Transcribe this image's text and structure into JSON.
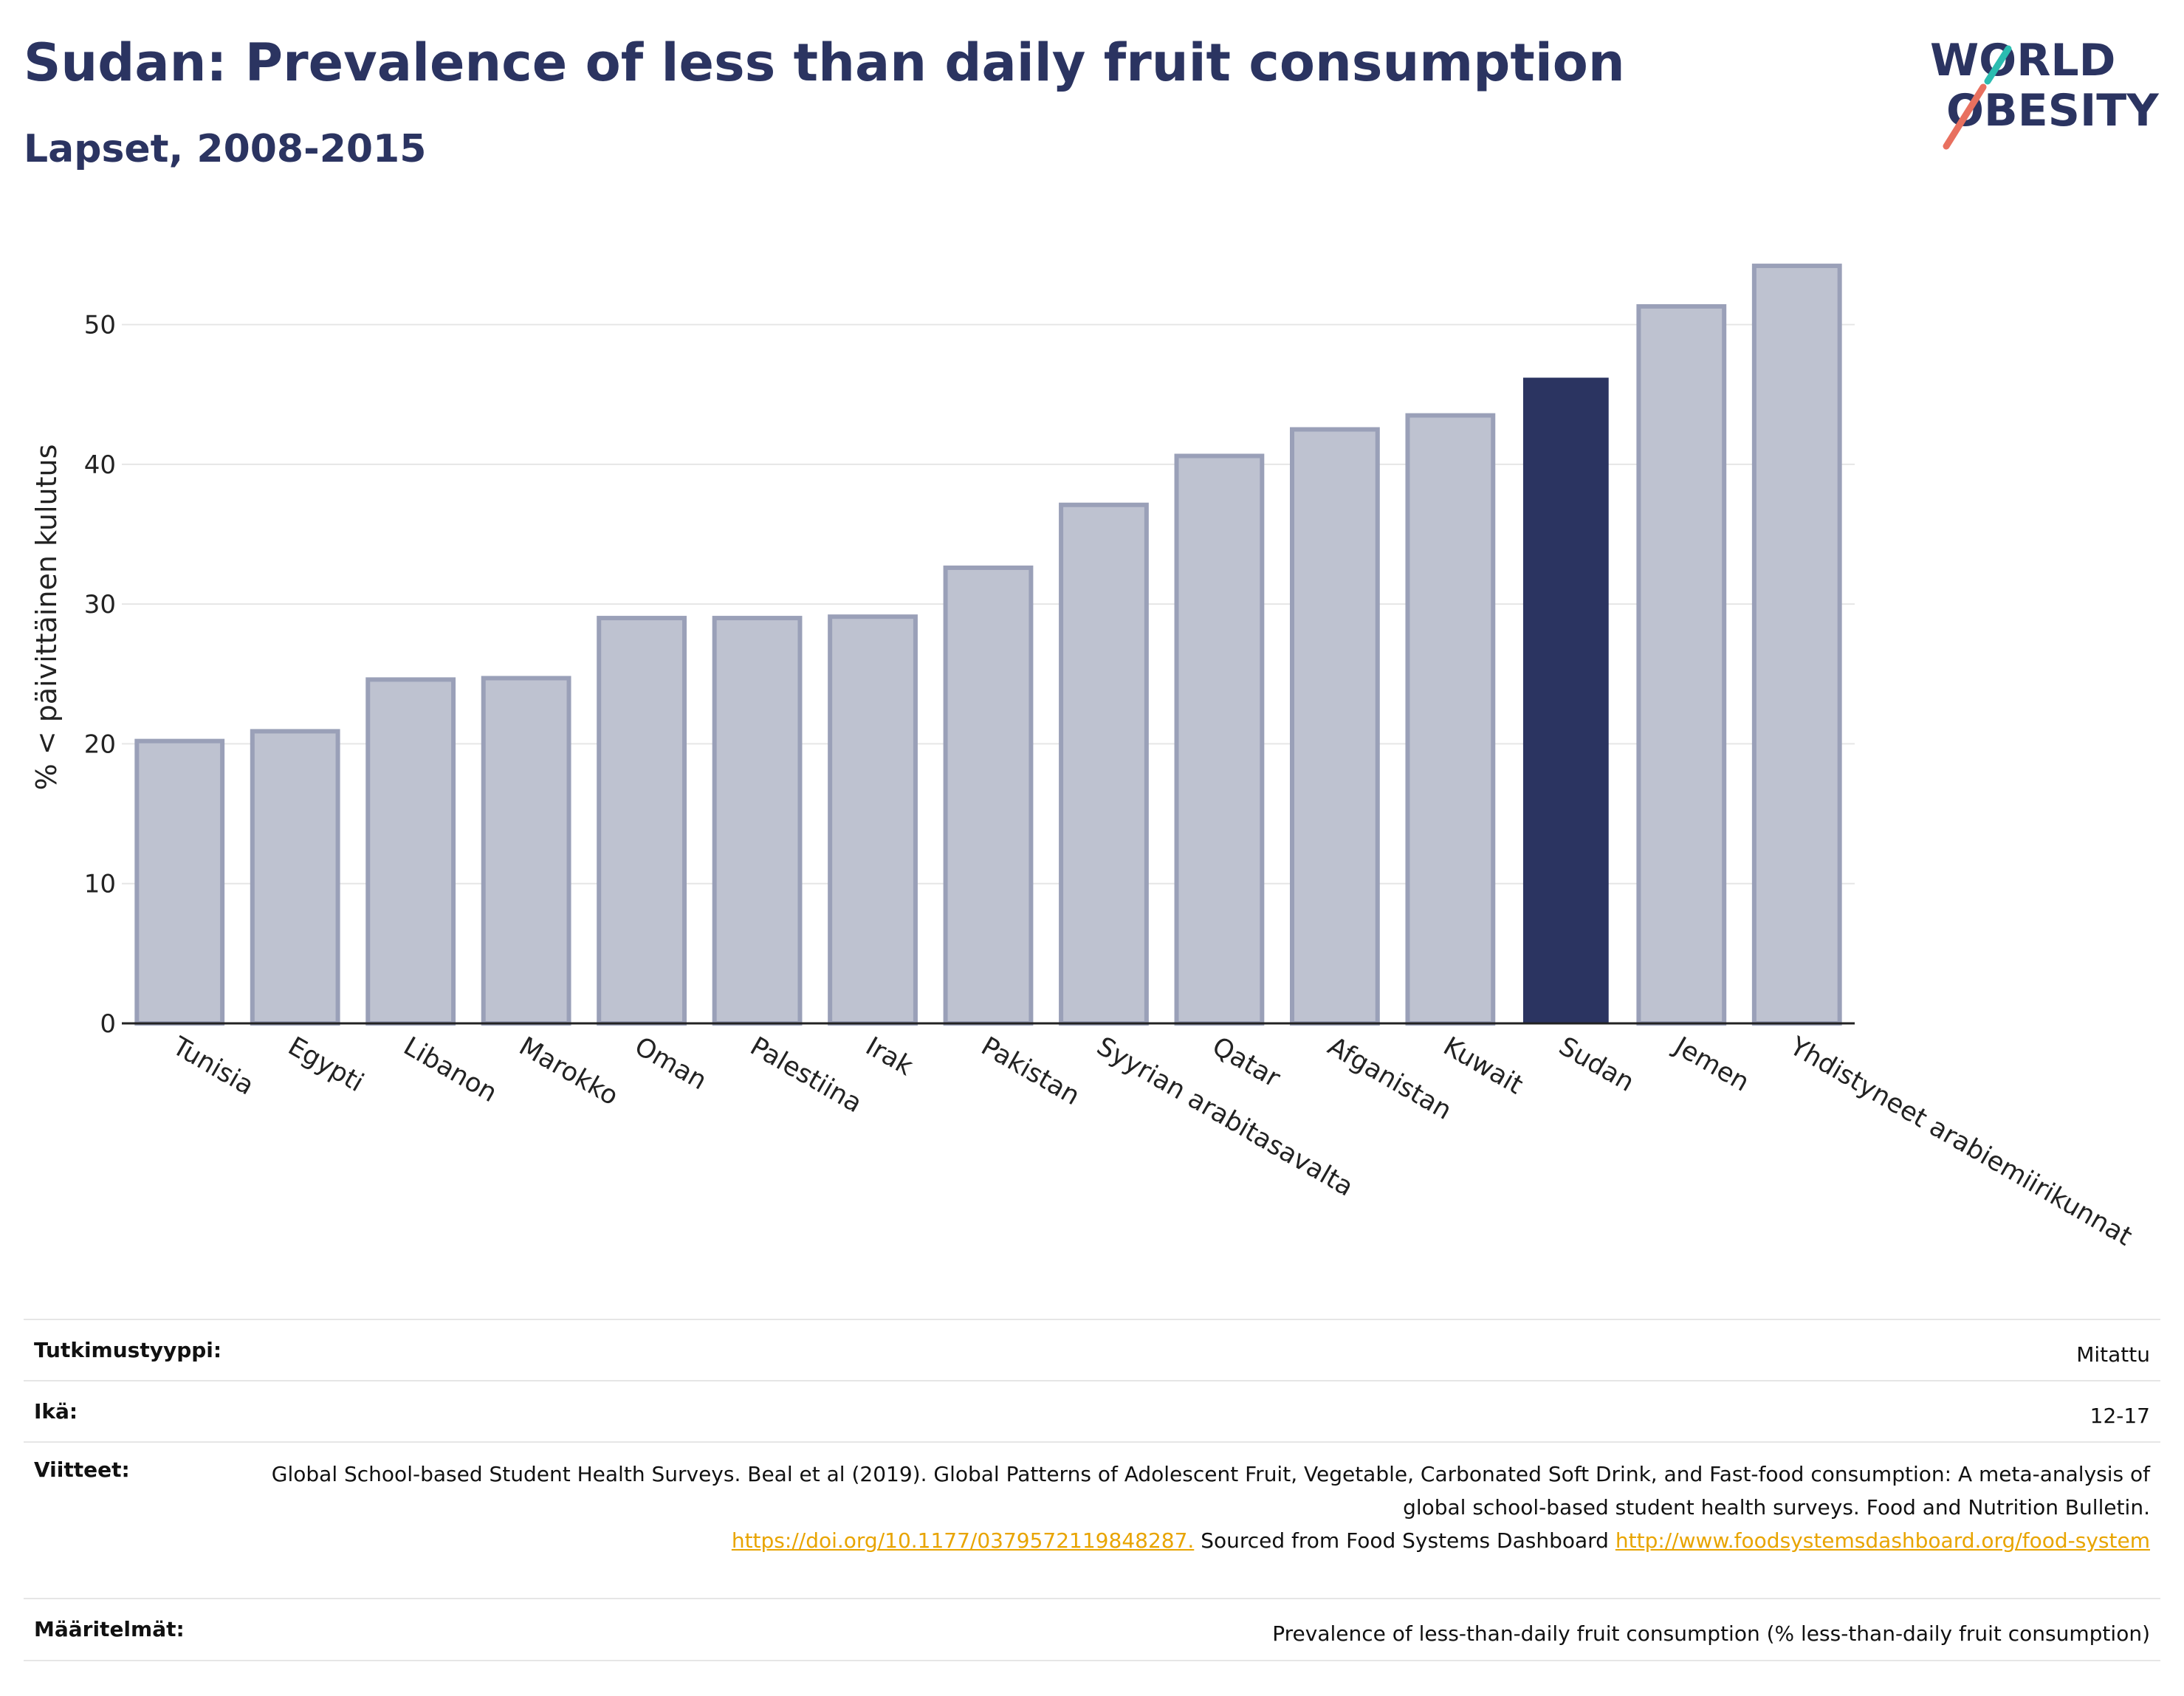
{
  "header": {
    "title": "Sudan: Prevalence of less than daily fruit consumption",
    "subtitle": "Lapset, 2008-2015"
  },
  "logo": {
    "line1": "WORLD",
    "line2": "OBESITY"
  },
  "colors": {
    "highlight": "#2b3461",
    "others": "#bec2d0",
    "others_border": "#9aa0b8",
    "grid": "#e6e6e6"
  },
  "chart_data": {
    "type": "bar",
    "ylabel": "% < päivittäinen kulutus",
    "ylim": [
      0,
      56
    ],
    "yticks": [
      0,
      10,
      20,
      30,
      40,
      50
    ],
    "grid": true,
    "highlight": "Sudan",
    "categories": [
      "Tunisia",
      "Egypti",
      "Libanon",
      "Marokko",
      "Oman",
      "Palestiina",
      "Irak",
      "Pakistan",
      "Syyrian arabitasavalta",
      "Qatar",
      "Afganistan",
      "Kuwait",
      "Sudan",
      "Jemen",
      "Yhdistyneet arabiemiirikunnat"
    ],
    "values": [
      20.2,
      20.9,
      24.6,
      24.7,
      29.0,
      29.0,
      29.1,
      32.6,
      37.1,
      40.6,
      42.5,
      43.5,
      46.2,
      51.3,
      54.2
    ]
  },
  "meta": {
    "study_type_label": "Tutkimustyyppi:",
    "study_type_value": "Mitattu",
    "age_label": "Ikä:",
    "age_value": "12-17",
    "refs_label": "Viitteet:",
    "refs_text1": "Global School-based Student Health Surveys. Beal et al (2019). Global Patterns of Adolescent Fruit, Vegetable, Carbonated Soft Drink, and Fast-food consumption: A meta-analysis of global school-based student health surveys. Food and Nutrition Bulletin.",
    "refs_link1": "https://doi.org/10.1177/0379572119848287.",
    "refs_text2": "Sourced from Food Systems Dashboard",
    "refs_link2": "http://www.foodsystemsdashboard.org/food-system",
    "definitions_label": "Määritelmät:",
    "definitions_value": "Prevalence of less-than-daily fruit consumption (% less-than-daily fruit consumption)"
  }
}
